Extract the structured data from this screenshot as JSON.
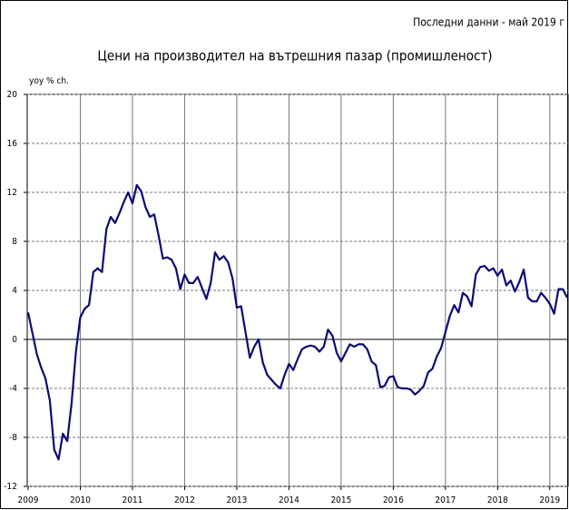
{
  "chart_data": {
    "type": "line",
    "title": "Цени на производител на вътрешния пазар (промишленост)",
    "subtitle": "Последни данни - май 2019 г",
    "y_label": "yoy % ch.",
    "categories": [
      "2009",
      null,
      null,
      null,
      null,
      null,
      null,
      null,
      null,
      null,
      null,
      null,
      "2010",
      null,
      null,
      null,
      null,
      null,
      null,
      null,
      null,
      null,
      null,
      null,
      "2011",
      null,
      null,
      null,
      null,
      null,
      null,
      null,
      null,
      null,
      null,
      null,
      "2012",
      null,
      null,
      null,
      null,
      null,
      null,
      null,
      null,
      null,
      null,
      null,
      "2013",
      null,
      null,
      null,
      null,
      null,
      null,
      null,
      null,
      null,
      null,
      null,
      "2014",
      null,
      null,
      null,
      null,
      null,
      null,
      null,
      null,
      null,
      null,
      null,
      "2015",
      null,
      null,
      null,
      null,
      null,
      null,
      null,
      null,
      null,
      null,
      null,
      "2016",
      null,
      null,
      null,
      null,
      null,
      null,
      null,
      null,
      null,
      null,
      null,
      "2017",
      null,
      null,
      null,
      null,
      null,
      null,
      null,
      null,
      null,
      null,
      null,
      "2018",
      null,
      null,
      null,
      null,
      null,
      null,
      null,
      null,
      null,
      null,
      null,
      "2019",
      null,
      null,
      null,
      null
    ],
    "series": [
      {
        "name": "yoy % ch.",
        "color": "#0a0a78",
        "values": [
          2.2,
          0.5,
          -1.2,
          -2.3,
          -3.2,
          -5,
          -9,
          -9.8,
          -7.7,
          -8.3,
          -5.2,
          -1,
          1.8,
          2.5,
          2.8,
          5.5,
          5.8,
          5.5,
          9,
          10,
          9.5,
          10.3,
          11.2,
          12,
          11.1,
          12.6,
          12.1,
          10.8,
          10,
          10.2,
          8.5,
          6.6,
          6.7,
          6.5,
          5.8,
          4.1,
          5.3,
          4.6,
          4.6,
          5.1,
          4.2,
          3.3,
          4.6,
          7.1,
          6.5,
          6.8,
          6.3,
          5,
          2.6,
          2.7,
          0.6,
          -1.5,
          -0.6,
          0,
          -1.9,
          -2.9,
          -3.3,
          -3.7,
          -4,
          -2.9,
          -2,
          -2.5,
          -1.6,
          -0.8,
          -0.6,
          -0.5,
          -0.6,
          -1,
          -0.6,
          0.8,
          0.3,
          -1.1,
          -1.8,
          -1.1,
          -0.4,
          -0.6,
          -0.4,
          -0.4,
          -0.8,
          -1.8,
          -2.1,
          -3.9,
          -3.8,
          -3.1,
          -3,
          -3.9,
          -4,
          -4,
          -4.1,
          -4.5,
          -4.2,
          -3.8,
          -2.7,
          -2.4,
          -1.4,
          -0.7,
          0.6,
          1.9,
          2.8,
          2.2,
          3.8,
          3.5,
          2.7,
          5.3,
          5.9,
          6,
          5.6,
          5.8,
          5.2,
          5.7,
          4.4,
          4.8,
          3.9,
          4.7,
          5.7,
          3.4,
          3.1,
          3.1,
          3.8,
          3.4,
          2.9,
          2.1,
          4.1,
          4.1,
          3.4
        ]
      }
    ],
    "ylim": [
      -12,
      20
    ],
    "yticks": [
      -12,
      -8,
      -4,
      0,
      4,
      8,
      12,
      16,
      20
    ],
    "grid": true
  }
}
